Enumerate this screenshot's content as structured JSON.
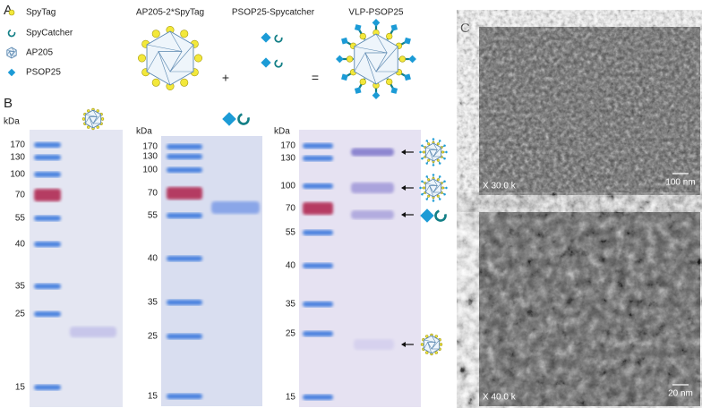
{
  "panel_a": {
    "label": "A",
    "legend": [
      "SpyTag",
      "SpyCatcher",
      "AP205",
      "PSOP25"
    ],
    "headings": [
      "AP205-2*SpyTag",
      "PSOP25-Spycatcher",
      "VLP-PSOP25"
    ],
    "operators": [
      "+",
      "="
    ]
  },
  "panel_b": {
    "label": "B",
    "gels": [
      {
        "unit": "kDa",
        "markers": [
          170,
          130,
          100,
          70,
          55,
          40,
          35,
          25,
          15
        ]
      },
      {
        "unit": "kDa",
        "markers": [
          170,
          130,
          100,
          70,
          55,
          40,
          35,
          25,
          15
        ]
      },
      {
        "unit": "kDa",
        "markers": [
          170,
          130,
          100,
          70,
          55,
          40,
          35,
          25,
          15
        ]
      }
    ]
  },
  "panel_c": {
    "label": "C",
    "images": [
      {
        "magnification": "X 30.0 k",
        "scale_bar": "100 nm"
      },
      {
        "magnification": "X 40.0 k",
        "scale_bar": "20 nm"
      }
    ]
  }
}
